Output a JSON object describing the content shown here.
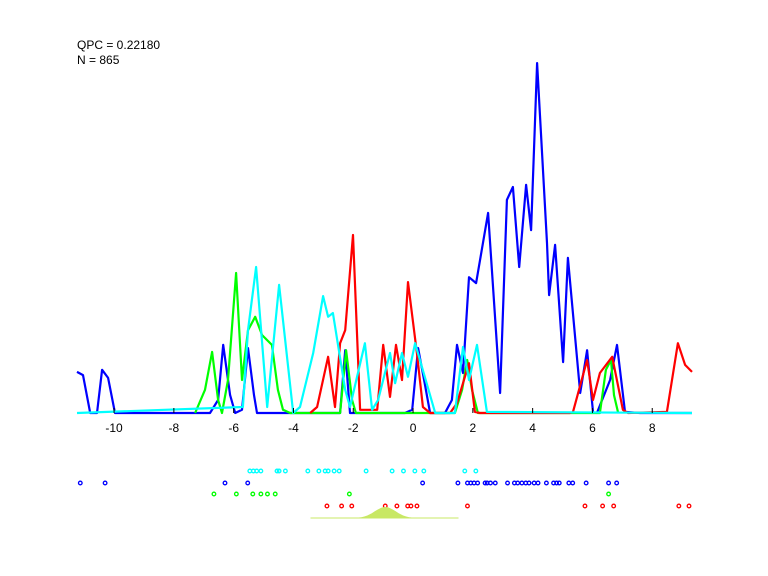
{
  "stats": {
    "qpc": "QPC = 0.22180",
    "n": "N = 865"
  },
  "chart_data": {
    "type": "line",
    "title": "",
    "xlabel": "",
    "ylabel": "",
    "xlim": [
      -11.24,
      9.33
    ],
    "ylim": [
      0,
      1
    ],
    "grid": false,
    "xticks": [
      -10,
      -8,
      -6,
      -4,
      -2,
      0,
      2,
      4,
      6,
      8
    ],
    "xtick_labels": [
      "-10",
      "-8",
      "-6",
      "-4",
      "-2",
      "0",
      "2",
      "4",
      "6",
      "8"
    ],
    "series": [
      {
        "color": "#0000ff",
        "points": [
          [
            -11.24,
            0.117
          ],
          [
            -11.04,
            0.108
          ],
          [
            -10.8,
            0
          ],
          [
            -10.57,
            0
          ],
          [
            -10.4,
            0.123
          ],
          [
            -10.2,
            0.1
          ],
          [
            -9.97,
            0
          ],
          [
            -9.46,
            0
          ],
          [
            -6.79,
            0
          ],
          [
            -6.52,
            0.037
          ],
          [
            -6.35,
            0.194
          ],
          [
            -6.12,
            0.051
          ],
          [
            -5.95,
            0
          ],
          [
            -5.72,
            0.009
          ],
          [
            -5.52,
            0.185
          ],
          [
            -5.32,
            0.051
          ],
          [
            -5.22,
            0
          ],
          [
            -2.44,
            0
          ],
          [
            -2.27,
            0.179
          ],
          [
            -2.11,
            0
          ],
          [
            -0.27,
            0
          ],
          [
            -0.03,
            0.009
          ],
          [
            0.17,
            0.185
          ],
          [
            0.37,
            0.094
          ],
          [
            0.57,
            0
          ],
          [
            1.07,
            0
          ],
          [
            1.3,
            0.037
          ],
          [
            1.47,
            0.194
          ],
          [
            1.67,
            0.114
          ],
          [
            1.87,
            0.387
          ],
          [
            2.11,
            0.37
          ],
          [
            2.51,
            0.57
          ],
          [
            2.91,
            0.057
          ],
          [
            3.14,
            0.607
          ],
          [
            3.34,
            0.644
          ],
          [
            3.55,
            0.416
          ],
          [
            3.78,
            0.65
          ],
          [
            3.95,
            0.521
          ],
          [
            4.15,
            0.997
          ],
          [
            4.48,
            0.484
          ],
          [
            4.55,
            0.336
          ],
          [
            4.75,
            0.479
          ],
          [
            5.02,
            0.145
          ],
          [
            5.18,
            0.442
          ],
          [
            5.59,
            0.057
          ],
          [
            5.82,
            0.179
          ],
          [
            6.02,
            0.003
          ],
          [
            6.15,
            0
          ],
          [
            6.59,
            0.094
          ],
          [
            6.82,
            0.194
          ],
          [
            7.09,
            0.003
          ],
          [
            7.59,
            0
          ],
          [
            9.33,
            0
          ]
        ]
      },
      {
        "color": "#00ff00",
        "points": [
          [
            -7.29,
            0
          ],
          [
            -6.96,
            0.066
          ],
          [
            -6.72,
            0.174
          ],
          [
            -6.52,
            0.037
          ],
          [
            -6.39,
            0
          ],
          [
            -6.19,
            0.094
          ],
          [
            -5.92,
            0.399
          ],
          [
            -5.72,
            0.094
          ],
          [
            -5.52,
            0.236
          ],
          [
            -5.28,
            0.274
          ],
          [
            -5.05,
            0.222
          ],
          [
            -4.72,
            0.194
          ],
          [
            -4.52,
            0.066
          ],
          [
            -4.35,
            0.009
          ],
          [
            -4.11,
            0
          ],
          [
            -2.44,
            0
          ],
          [
            -2.24,
            0.179
          ],
          [
            -2.04,
            0.037
          ],
          [
            -1.91,
            0
          ],
          [
            1.4,
            0
          ],
          [
            1.64,
            0.066
          ],
          [
            1.81,
            0.151
          ],
          [
            1.97,
            0.066
          ],
          [
            2.17,
            0
          ],
          [
            6.25,
            0
          ],
          [
            6.45,
            0.123
          ],
          [
            6.62,
            0.151
          ],
          [
            6.72,
            0.051
          ],
          [
            6.86,
            0
          ]
        ]
      },
      {
        "color": "#ff0000",
        "points": [
          [
            -3.44,
            0
          ],
          [
            -3.21,
            0.017
          ],
          [
            -2.84,
            0.16
          ],
          [
            -2.61,
            0.017
          ],
          [
            -2.44,
            0.199
          ],
          [
            -2.27,
            0.236
          ],
          [
            -2.01,
            0.507
          ],
          [
            -1.77,
            0.009
          ],
          [
            -1.2,
            0.009
          ],
          [
            -1.0,
            0.194
          ],
          [
            -0.77,
            0.046
          ],
          [
            -0.57,
            0.194
          ],
          [
            -0.37,
            0.094
          ],
          [
            -0.17,
            0.373
          ],
          [
            0.13,
            0.171
          ],
          [
            0.33,
            0.017
          ],
          [
            0.57,
            0
          ],
          [
            1.24,
            0
          ],
          [
            1.47,
            0.028
          ],
          [
            1.87,
            0.142
          ],
          [
            2.07,
            0.003
          ],
          [
            2.24,
            0
          ],
          [
            5.25,
            0
          ],
          [
            5.35,
            0.003
          ],
          [
            5.82,
            0.151
          ],
          [
            6.02,
            0.037
          ],
          [
            6.25,
            0.114
          ],
          [
            6.66,
            0.16
          ],
          [
            7.02,
            0.009
          ],
          [
            7.19,
            0
          ],
          [
            8.49,
            0.003
          ],
          [
            8.86,
            0.199
          ],
          [
            9.1,
            0.137
          ],
          [
            9.33,
            0.117
          ]
        ]
      },
      {
        "color": "#00ffff",
        "points": [
          [
            -11.24,
            0
          ],
          [
            -5.69,
            0.017
          ],
          [
            -5.52,
            0.236
          ],
          [
            -5.25,
            0.416
          ],
          [
            -4.88,
            0.017
          ],
          [
            -4.48,
            0.365
          ],
          [
            -4.01,
            0
          ],
          [
            -3.78,
            0.017
          ],
          [
            -3.34,
            0.171
          ],
          [
            -3.01,
            0.333
          ],
          [
            -2.84,
            0.274
          ],
          [
            -2.68,
            0.285
          ],
          [
            -2.27,
            0.066
          ],
          [
            -2.11,
            0.017
          ],
          [
            -1.61,
            0.199
          ],
          [
            -1.37,
            0.009
          ],
          [
            -1.17,
            0.037
          ],
          [
            -0.77,
            0.171
          ],
          [
            -0.6,
            0.085
          ],
          [
            -0.37,
            0.171
          ],
          [
            -0.17,
            0.103
          ],
          [
            0.07,
            0.199
          ],
          [
            0.74,
            0
          ],
          [
            1.4,
            0
          ],
          [
            1.67,
            0.188
          ],
          [
            1.87,
            0.094
          ],
          [
            2.14,
            0.194
          ],
          [
            2.47,
            0.003
          ],
          [
            9.33,
            0
          ]
        ]
      }
    ],
    "rug": [
      {
        "color": "#00ffff",
        "x": [
          -5.46,
          -5.34,
          -5.23,
          -5.09,
          -4.55,
          -4.48,
          -4.27,
          -3.52,
          -3.15,
          -2.94,
          -2.84,
          -2.64,
          -2.47,
          -1.57,
          -0.7,
          -0.32,
          0.06,
          0.36,
          1.73,
          2.1
        ]
      },
      {
        "color": "#0000ff",
        "x": [
          -11.13,
          -10.3,
          -6.29,
          -5.53,
          0.32,
          1.5,
          1.82,
          1.93,
          2.04,
          2.16,
          2.41,
          2.48,
          2.59,
          2.75,
          3.16,
          3.39,
          3.5,
          3.64,
          3.77,
          3.88,
          4.05,
          4.18,
          4.46,
          4.7,
          4.8,
          4.89,
          5.21,
          5.34,
          5.79,
          6.54,
          6.81
        ]
      },
      {
        "color": "#00ff00",
        "x": [
          -6.66,
          -5.91,
          -5.36,
          -5.09,
          -4.87,
          -4.61,
          -2.13,
          6.54
        ]
      },
      {
        "color": "#ff0000",
        "x": [
          -2.88,
          -2.39,
          -2.05,
          -0.93,
          -0.54,
          -0.18,
          -0.07,
          0.13,
          1.82,
          5.75,
          6.34,
          6.71,
          8.89,
          9.23
        ]
      }
    ],
    "hump": {
      "color": "#c8e864",
      "range": [
        -3.43,
        1.52
      ],
      "peak": -0.93,
      "width": 0.35
    }
  }
}
